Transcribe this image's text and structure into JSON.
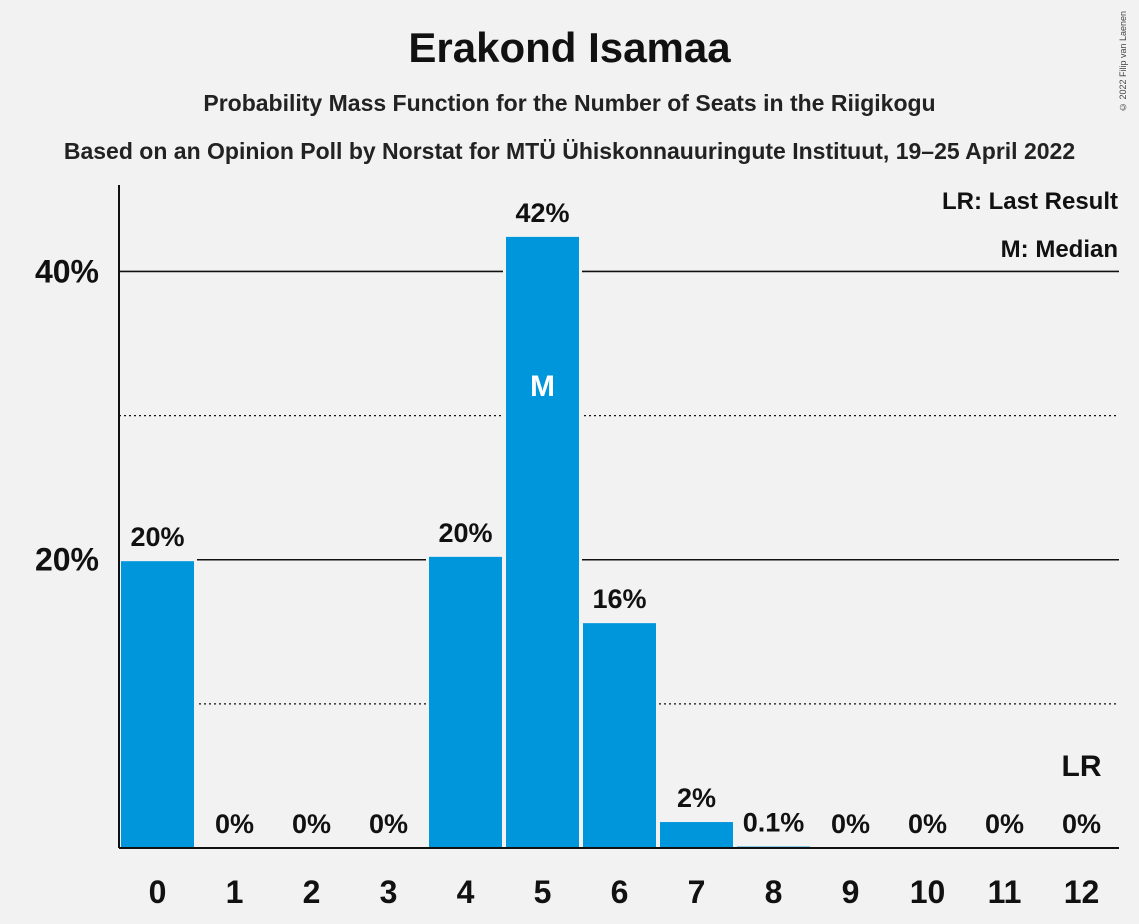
{
  "chart_data": {
    "type": "bar",
    "title": "Erakond Isamaa",
    "subtitle": "Probability Mass Function for the Number of Seats in the Riigikogu",
    "source": "Based on an Opinion Poll by Norstat for MTÜ Ühiskonnauuringute Instituut, 19–25 April 2022",
    "copyright": "© 2022 Filip van Laenen",
    "categories": [
      "0",
      "1",
      "2",
      "3",
      "4",
      "5",
      "6",
      "7",
      "8",
      "9",
      "10",
      "11",
      "12"
    ],
    "values": [
      19.9,
      0,
      0,
      0,
      20.2,
      42.4,
      15.6,
      1.8,
      0.1,
      0,
      0,
      0,
      0
    ],
    "value_labels": [
      "20%",
      "0%",
      "0%",
      "0%",
      "20%",
      "42%",
      "16%",
      "2%",
      "0.1%",
      "0%",
      "0%",
      "0%",
      "0%"
    ],
    "ylim": [
      0,
      46
    ],
    "yticks": [
      {
        "value": 20,
        "label": "20%"
      },
      {
        "value": 40,
        "label": "40%"
      }
    ],
    "minor_gridlines": [
      10,
      30
    ],
    "median_index": 5,
    "median_marker": "M",
    "last_result_index": 12,
    "last_result_marker": "LR",
    "legend": [
      "LR: Last Result",
      "M: Median"
    ],
    "legend_position": "top-right",
    "bar_color": "#0096dc"
  }
}
